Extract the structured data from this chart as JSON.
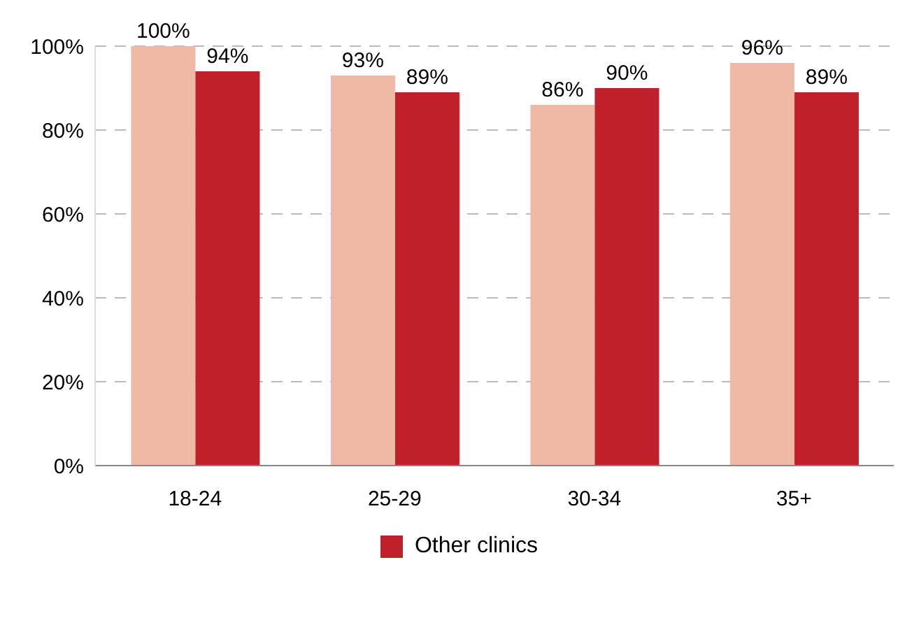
{
  "chart_data": {
    "type": "bar",
    "categories": [
      "18-24",
      "25-29",
      "30-34",
      "35+"
    ],
    "series": [
      {
        "color": "#efb9a6",
        "values": [
          100,
          93,
          86,
          96
        ],
        "value_labels": [
          "100%",
          "93%",
          "86%",
          "96%"
        ]
      },
      {
        "name": "Other clinics",
        "color": "#c0202a",
        "values": [
          94,
          89,
          90,
          89
        ],
        "value_labels": [
          "94%",
          "89%",
          "90%",
          "89%"
        ]
      }
    ],
    "ylim": [
      0,
      100
    ],
    "yticks": [
      {
        "value": 0,
        "label": "0%"
      },
      {
        "value": 20,
        "label": "20%"
      },
      {
        "value": 40,
        "label": "40%"
      },
      {
        "value": 60,
        "label": "60%"
      },
      {
        "value": 80,
        "label": "80%"
      },
      {
        "value": 100,
        "label": "100%"
      }
    ],
    "grid": "y",
    "legend": "bottom"
  }
}
